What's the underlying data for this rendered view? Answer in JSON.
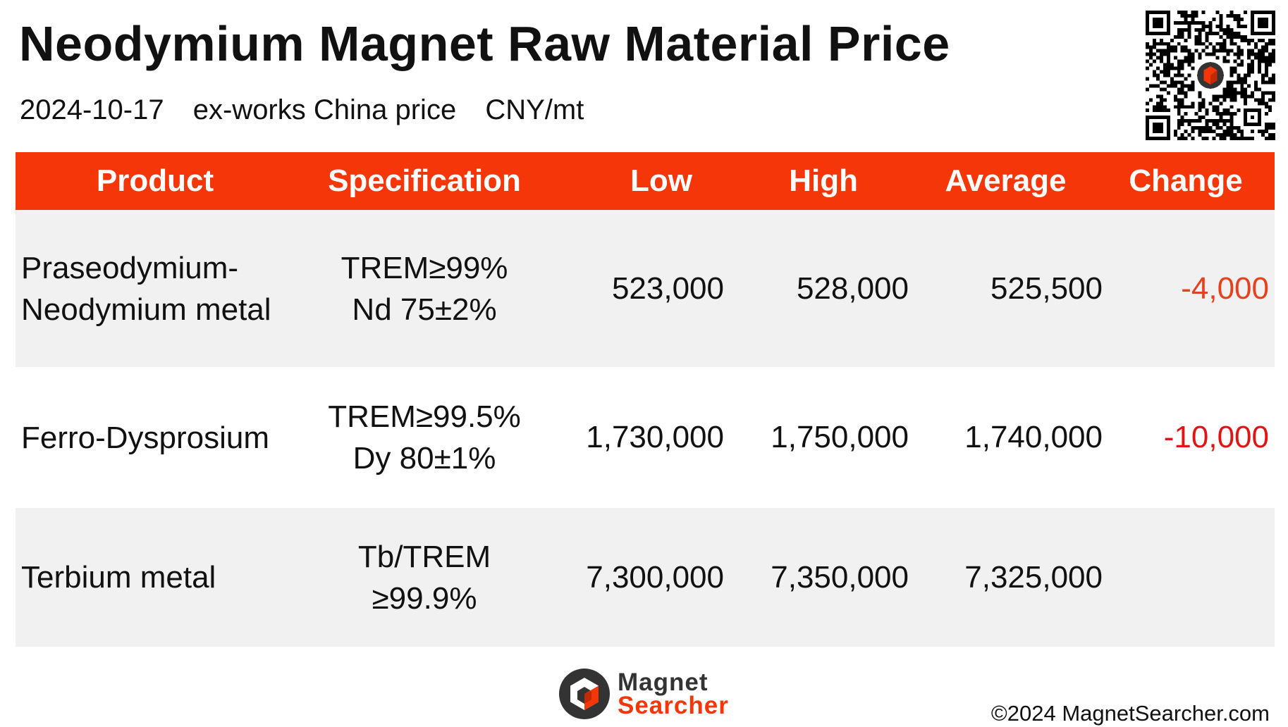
{
  "header": {
    "title": "Neodymium Magnet Raw Material Price",
    "date": "2024-10-17",
    "basis": "ex-works China price",
    "unit": "CNY/mt"
  },
  "table": {
    "columns": [
      "Product",
      "Specification",
      "Low",
      "High",
      "Average",
      "Change"
    ],
    "rows": [
      {
        "product": [
          "Praseodymium-",
          "Neodymium metal"
        ],
        "spec": [
          "TREM≥99%",
          "Nd 75±2%"
        ],
        "low": "523,000",
        "high": "528,000",
        "average": "525,500",
        "change": "-4,000",
        "change_color": "#e8401c"
      },
      {
        "product": [
          "Ferro-Dysprosium"
        ],
        "spec": [
          "TREM≥99.5%",
          "Dy 80±1%"
        ],
        "low": "1,730,000",
        "high": "1,750,000",
        "average": "1,740,000",
        "change": "-10,000",
        "change_color": "#e01414"
      },
      {
        "product": [
          "Terbium metal"
        ],
        "spec": [
          "Tb/TREM",
          "≥99.9%"
        ],
        "low": "7,300,000",
        "high": "7,350,000",
        "average": "7,325,000",
        "change": "",
        "change_color": "#e01414"
      }
    ]
  },
  "colors": {
    "accent": "#f53608",
    "row_shade": "#f1f1f1"
  },
  "footer": {
    "brand_line1": "Magnet",
    "brand_line2": "Searcher",
    "copyright": "©2024 MagnetSearcher.com"
  }
}
